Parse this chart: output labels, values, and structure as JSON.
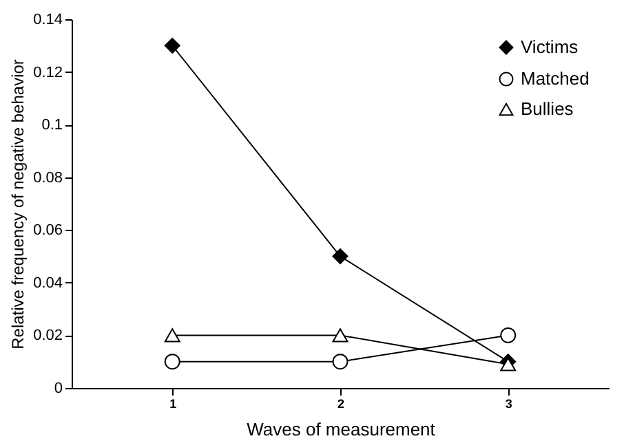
{
  "chart_data": {
    "type": "line",
    "xlabel": "Waves of measurement",
    "ylabel": "Relative frequency of negative behavior",
    "categories": [
      "1",
      "2",
      "3"
    ],
    "series": [
      {
        "name": "Victims",
        "color": "#000000",
        "marker": "diamond",
        "values": [
          0.13,
          0.05,
          0.01
        ]
      },
      {
        "name": "Matched",
        "color": "#000000",
        "marker": "circle",
        "values": [
          0.01,
          0.01,
          0.02
        ]
      },
      {
        "name": "Bullies",
        "color": "#000000",
        "marker": "triangle",
        "values": [
          0.02,
          0.02,
          0.009
        ]
      }
    ],
    "ylim": [
      0,
      0.14
    ],
    "yticks": [
      0,
      0.02,
      0.04,
      0.06,
      0.08,
      0.1,
      0.12,
      0.14
    ],
    "grid": false,
    "legend": "top right",
    "line_style": "solid"
  }
}
